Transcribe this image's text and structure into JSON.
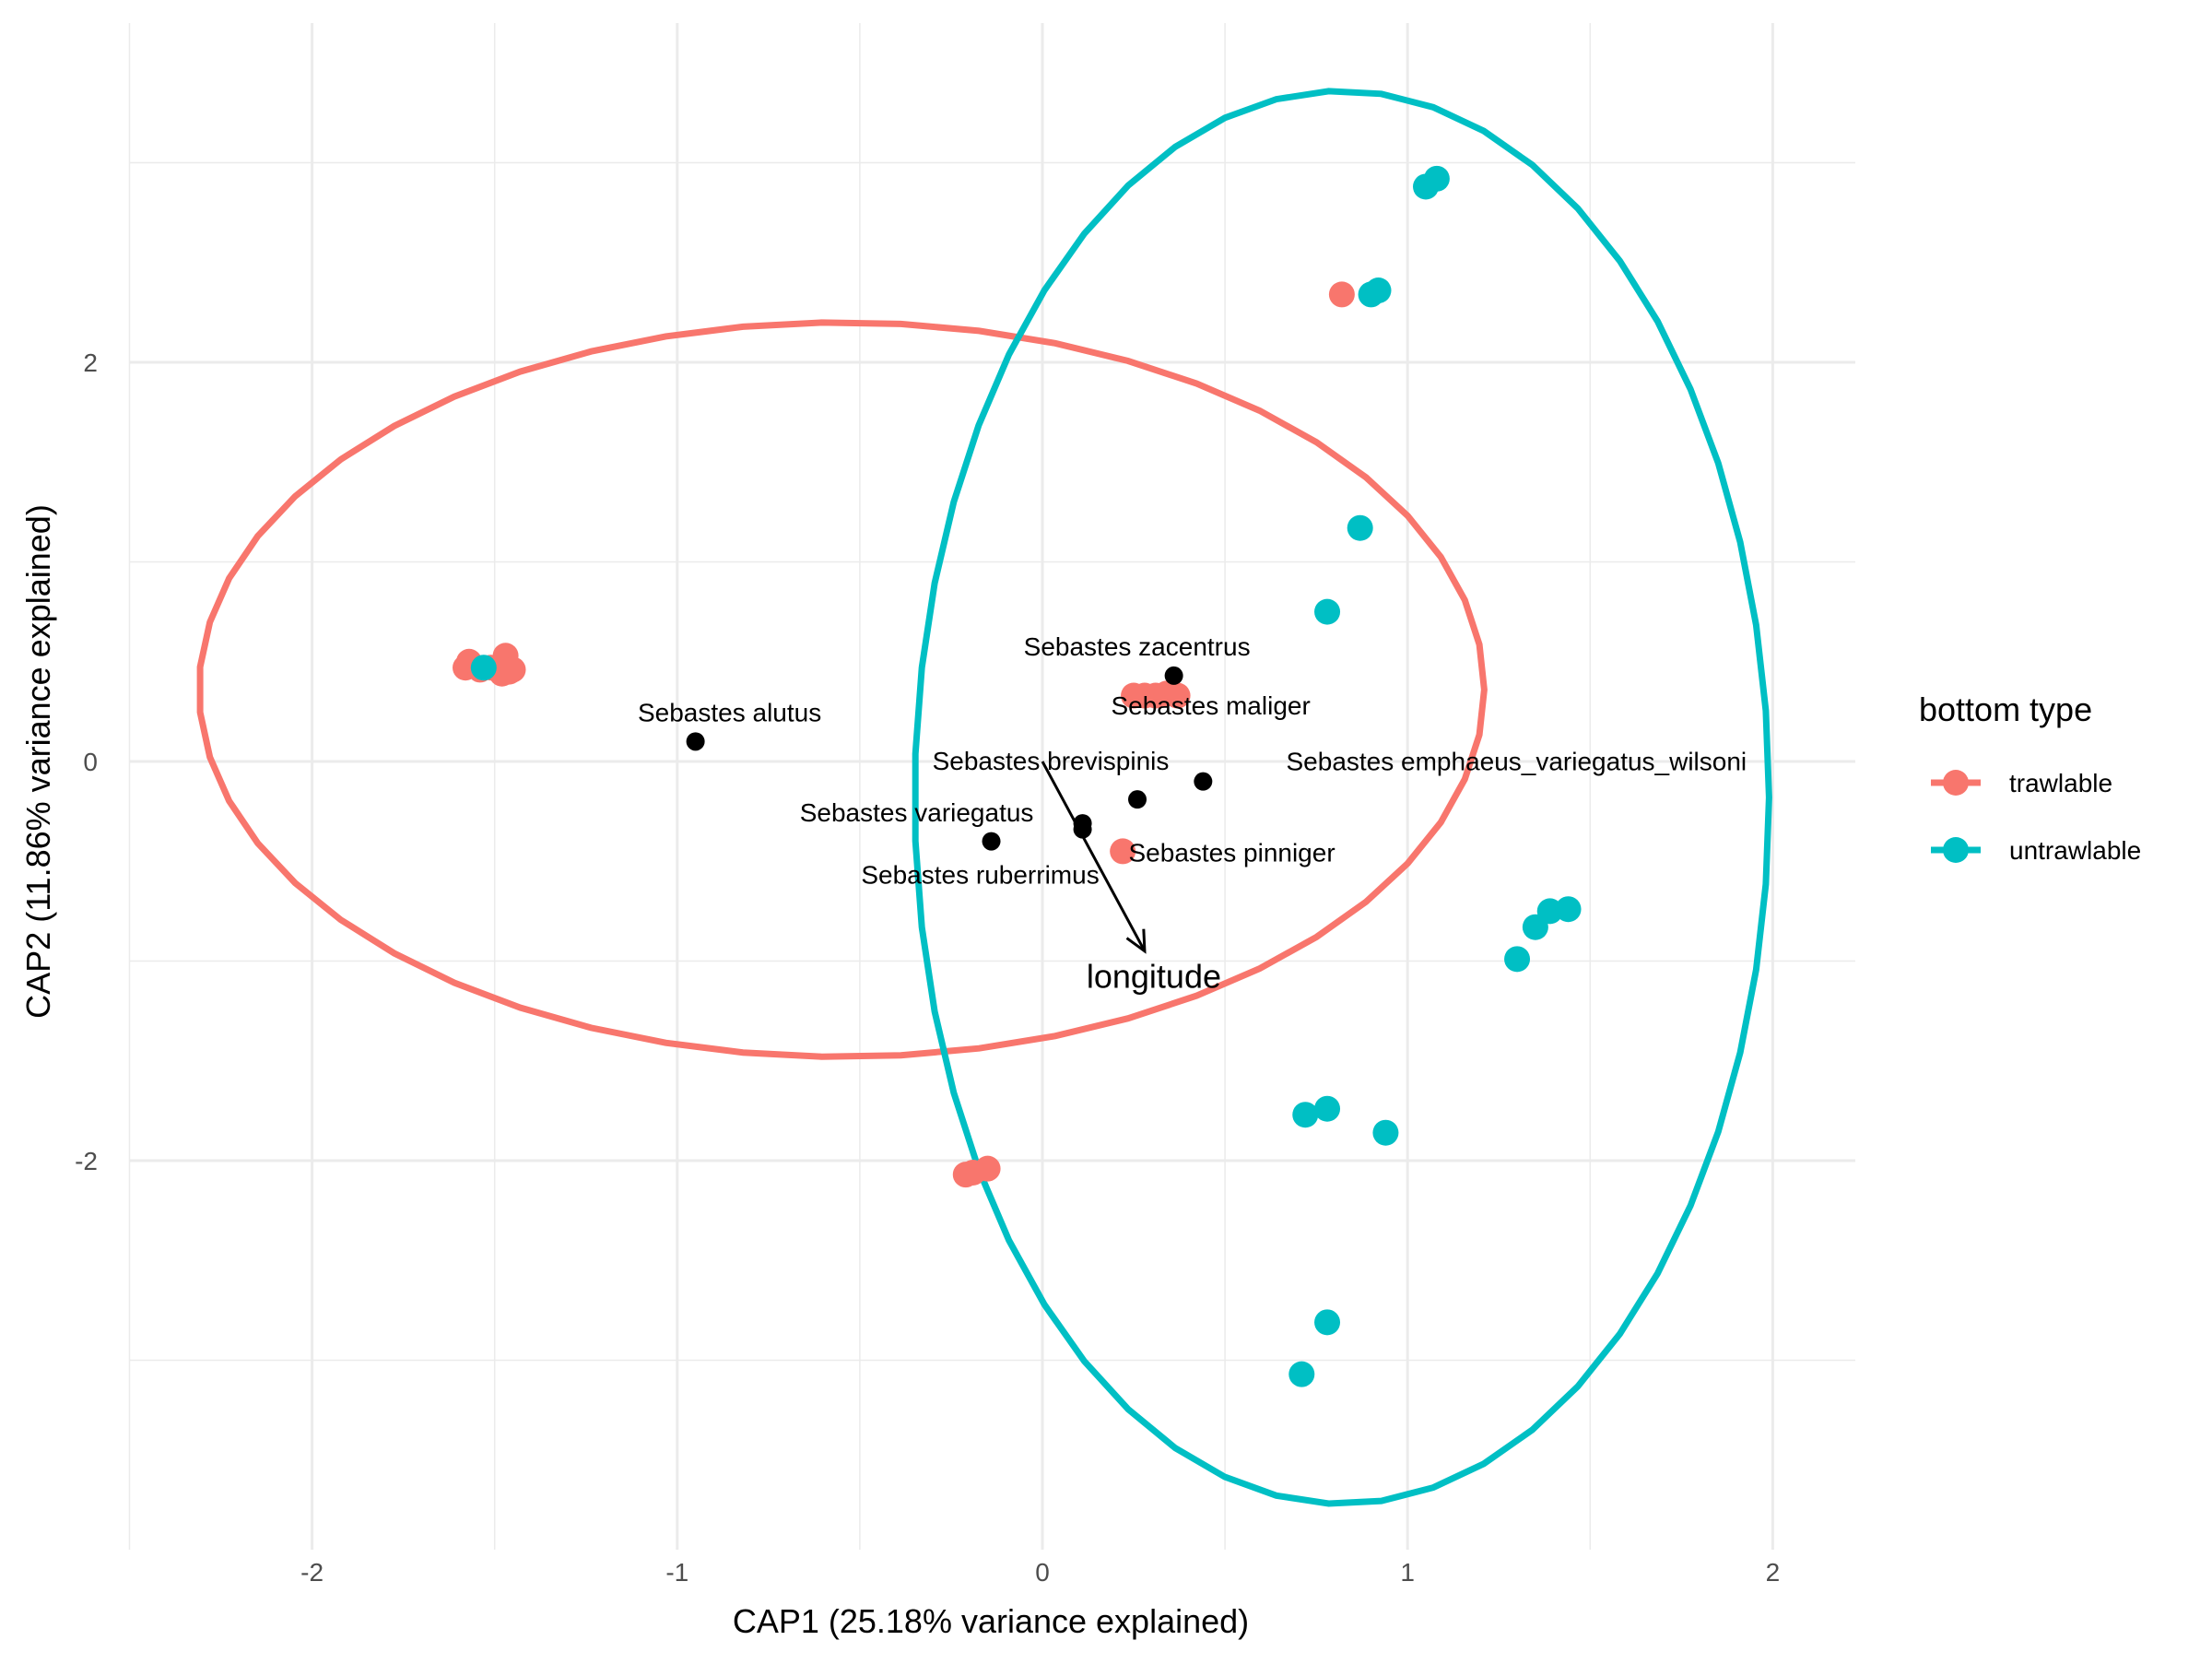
{
  "chart_data": {
    "type": "scatter",
    "xlabel": "CAP1 (25.18% variance explained)",
    "ylabel": "CAP2 (11.86% variance explained)",
    "xlim": [
      -2.5,
      2.3
    ],
    "ylim": [
      -3.9,
      3.7
    ],
    "x_ticks": [
      -2,
      -1,
      0,
      1,
      2
    ],
    "x_tick_labels": [
      "-2",
      "-1",
      "0",
      "1",
      "2"
    ],
    "y_ticks": [
      -2,
      0,
      2
    ],
    "y_tick_labels": [
      "-2",
      "0",
      "2"
    ],
    "grid": true,
    "legend": {
      "title": "bottom type",
      "position": "right",
      "entries": [
        {
          "label": "trawlable",
          "color": "#F8766D"
        },
        {
          "label": "untrawlable",
          "color": "#00BFC4"
        }
      ]
    },
    "series": [
      {
        "name": "trawlable",
        "color": "#F8766D",
        "points": [
          {
            "x": -1.58,
            "y": 0.47
          },
          {
            "x": -1.57,
            "y": 0.5
          },
          {
            "x": -1.54,
            "y": 0.46
          },
          {
            "x": -1.51,
            "y": 0.47
          },
          {
            "x": -1.48,
            "y": 0.44
          },
          {
            "x": -1.47,
            "y": 0.47
          },
          {
            "x": -1.46,
            "y": 0.45
          },
          {
            "x": -1.47,
            "y": 0.53
          },
          {
            "x": -1.45,
            "y": 0.46
          },
          {
            "x": 0.82,
            "y": 2.34
          },
          {
            "x": 0.25,
            "y": 0.33
          },
          {
            "x": 0.28,
            "y": 0.33
          },
          {
            "x": 0.31,
            "y": 0.33
          },
          {
            "x": 0.34,
            "y": 0.34
          },
          {
            "x": 0.37,
            "y": 0.33
          },
          {
            "x": 0.22,
            "y": -0.45
          },
          {
            "x": -0.21,
            "y": -2.07
          },
          {
            "x": -0.19,
            "y": -2.06
          },
          {
            "x": -0.15,
            "y": -2.04
          }
        ]
      },
      {
        "name": "untrawlable",
        "color": "#00BFC4",
        "points": [
          {
            "x": -1.53,
            "y": 0.47
          },
          {
            "x": 1.05,
            "y": 2.88
          },
          {
            "x": 1.08,
            "y": 2.92
          },
          {
            "x": 0.9,
            "y": 2.34
          },
          {
            "x": 0.92,
            "y": 2.36
          },
          {
            "x": 0.87,
            "y": 1.17
          },
          {
            "x": 0.78,
            "y": 0.75
          },
          {
            "x": 1.3,
            "y": -0.99
          },
          {
            "x": 1.35,
            "y": -0.83
          },
          {
            "x": 1.39,
            "y": -0.75
          },
          {
            "x": 1.44,
            "y": -0.74
          },
          {
            "x": 0.72,
            "y": -1.77
          },
          {
            "x": 0.78,
            "y": -1.74
          },
          {
            "x": 0.94,
            "y": -1.86
          },
          {
            "x": 0.78,
            "y": -2.81
          },
          {
            "x": 0.71,
            "y": -3.07
          }
        ]
      }
    ],
    "ellipses": [
      {
        "series": "trawlable",
        "color": "#F8766D",
        "cx": -0.55,
        "cy": 0.36,
        "rx": 1.76,
        "ry": 1.84,
        "rot_deg": 0
      },
      {
        "series": "untrawlable",
        "color": "#00BFC4",
        "cx": 0.82,
        "cy": -0.18,
        "rx": 1.17,
        "ry": 3.54,
        "rot_deg": 0
      }
    ],
    "species": [
      {
        "label": "Sebastes zacentrus",
        "x": 0.36,
        "y": 0.43
      },
      {
        "label": "Sebastes maliger",
        "x": 0.36,
        "y": 0.43
      },
      {
        "label": "Sebastes alutus",
        "x": -0.95,
        "y": 0.1
      },
      {
        "label": "Sebastes brevispinis",
        "x": 0.26,
        "y": -0.19
      },
      {
        "label": "Sebastes emphaeus_variegatus_wilsoni",
        "x": 0.44,
        "y": -0.1
      },
      {
        "label": "Sebastes variegatus",
        "x": 0.11,
        "y": -0.31
      },
      {
        "label": "Sebastes pinniger",
        "x": 0.11,
        "y": -0.34
      },
      {
        "label": "Sebastes ruberrimus",
        "x": -0.14,
        "y": -0.4
      }
    ],
    "vectors": [
      {
        "label": "longitude",
        "x0": 0.0,
        "y0": 0.0,
        "x1": 0.28,
        "y1": -0.95
      }
    ]
  }
}
